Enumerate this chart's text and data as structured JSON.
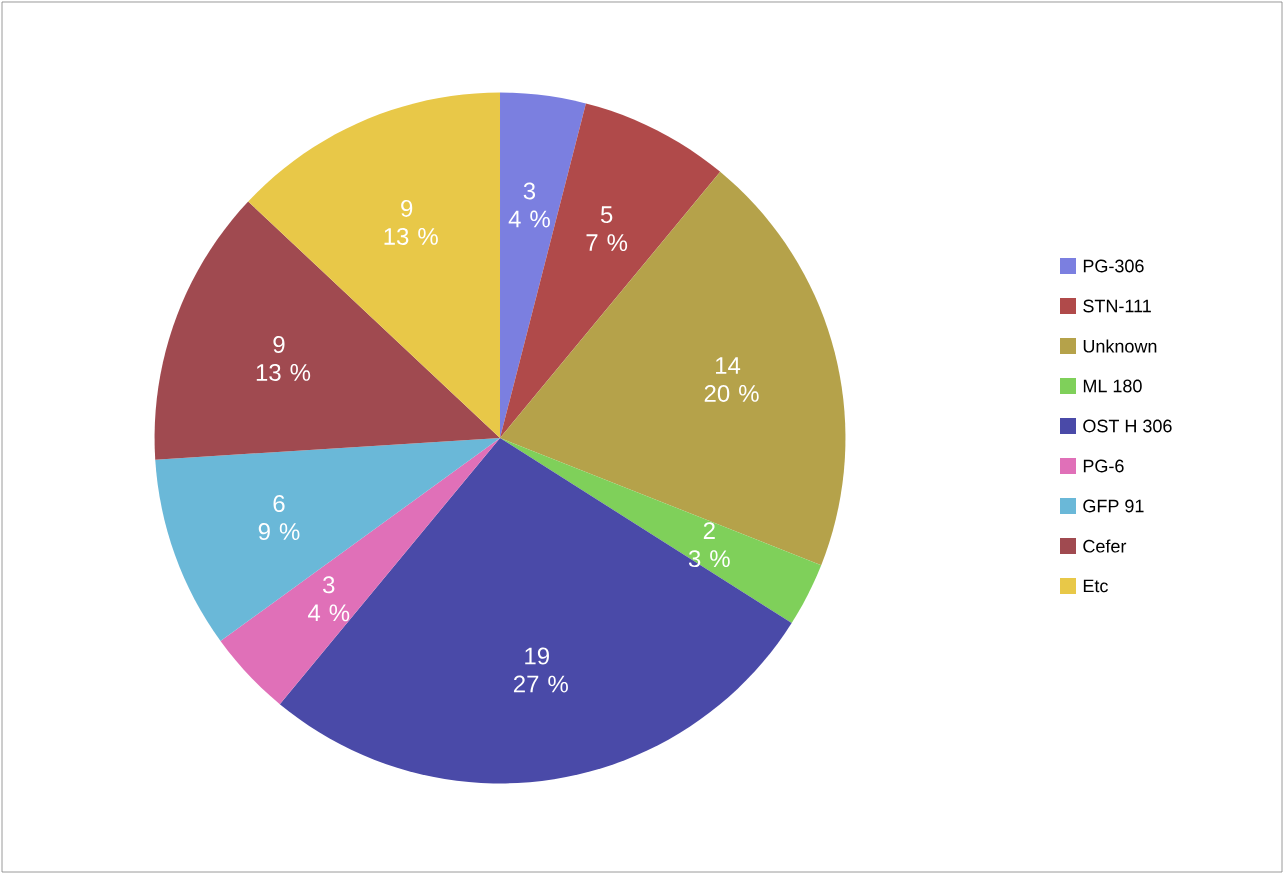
{
  "chart_data": {
    "type": "pie",
    "categories": [
      "PG-306",
      "STN-111",
      "Unknown",
      "ML 180",
      "OST H 306",
      "PG-6",
      "GFP 91",
      "Cefer",
      "Etc"
    ],
    "values": [
      4,
      7,
      20,
      3,
      27,
      4,
      9,
      13,
      13
    ],
    "colors": [
      "#7b7fe0",
      "#b04a4a",
      "#b5a24a",
      "#7fd05a",
      "#4a4aa8",
      "#e070b8",
      "#6ab8d8",
      "#a04a50",
      "#e8c848"
    ],
    "value_labels": [
      "3 4 %",
      "5 7 %",
      "14 20 %",
      "2 3 %",
      "19 27 %",
      "3 4 %",
      "6 9 %",
      "9 13 %",
      "9 13 %"
    ],
    "legend": "right"
  }
}
